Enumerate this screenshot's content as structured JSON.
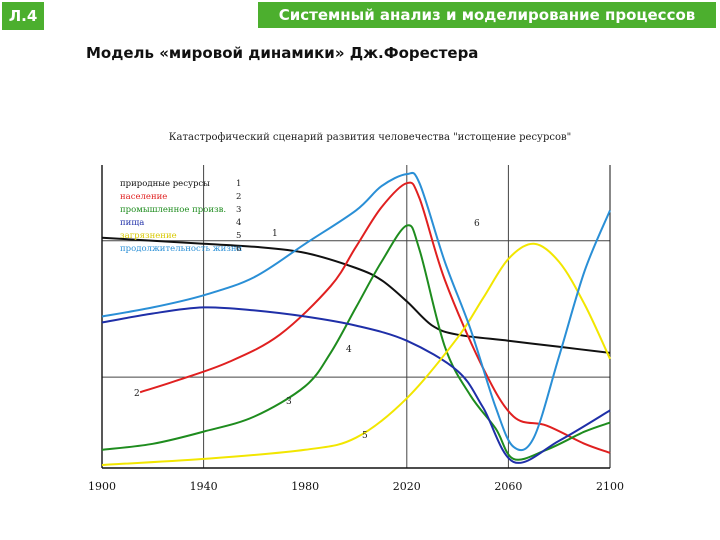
{
  "header": {
    "lecture_badge": "Л.4",
    "course_title": "Системный анализ и моделирование процессов",
    "slide_subtitle": "Модель «мировой динамики» Дж.Форестера"
  },
  "chart_data": {
    "type": "line",
    "title": "Катастрофический сценарий развития человечества \"истощение ресурсов\"",
    "xlabel": "",
    "ylabel": "",
    "xlim": [
      1900,
      2100
    ],
    "ylim": [
      0,
      100
    ],
    "x_ticks": [
      "1900",
      "1940",
      "1980",
      "2020",
      "2060",
      "2100"
    ],
    "grid": true,
    "legend_position": "top-left",
    "series": [
      {
        "name": "природные ресурсы",
        "number": "1",
        "color": "#111111",
        "x": [
          1900,
          1920,
          1940,
          1960,
          1980,
          2000,
          2010,
          2020,
          2030,
          2040,
          2060,
          2080,
          2100
        ],
        "y": [
          76,
          75,
          74,
          73,
          71,
          66,
          62,
          55,
          47,
          44,
          42,
          40,
          38
        ]
      },
      {
        "name": "население",
        "number": "2",
        "color": "#e02020",
        "x": [
          1915,
          1930,
          1950,
          1970,
          1990,
          2000,
          2010,
          2020,
          2025,
          2035,
          2050,
          2062,
          2075,
          2090,
          2100
        ],
        "y": [
          25,
          29,
          35,
          44,
          60,
          73,
          86,
          94,
          89,
          62,
          33,
          17,
          14,
          8,
          5
        ]
      },
      {
        "name": "промышленное произв.",
        "number": "3",
        "color": "#1e8c1e",
        "x": [
          1900,
          1920,
          1940,
          1960,
          1980,
          1990,
          2000,
          2010,
          2020,
          2025,
          2035,
          2045,
          2055,
          2062,
          2075,
          2090,
          2100
        ],
        "y": [
          6,
          8,
          12,
          17,
          27,
          38,
          53,
          68,
          80,
          72,
          40,
          24,
          13,
          3,
          6,
          12,
          15
        ]
      },
      {
        "name": "пища",
        "number": "4",
        "color": "#1f2fa8",
        "x": [
          1900,
          1920,
          1940,
          1960,
          1980,
          2000,
          2020,
          2040,
          2050,
          2062,
          2080,
          2100
        ],
        "y": [
          48,
          51,
          53,
          52,
          50,
          47,
          42,
          32,
          20,
          2,
          9,
          19
        ]
      },
      {
        "name": "загрязнение",
        "number": "5",
        "color": "#f2e600",
        "x": [
          1900,
          1940,
          1980,
          2000,
          2020,
          2040,
          2050,
          2060,
          2070,
          2080,
          2090,
          2100
        ],
        "y": [
          1,
          3,
          6,
          10,
          23,
          43,
          56,
          69,
          74,
          68,
          54,
          36
        ]
      },
      {
        "name": "продолжительность жизни",
        "number": "6",
        "color": "#2a8fd6",
        "x": [
          1900,
          1920,
          1940,
          1960,
          1980,
          2000,
          2010,
          2020,
          2025,
          2035,
          2045,
          2055,
          2062,
          2070,
          2080,
          2090,
          2100
        ],
        "y": [
          50,
          53,
          57,
          63,
          74,
          85,
          93,
          97,
          94,
          68,
          46,
          20,
          7,
          10,
          37,
          65,
          85
        ]
      }
    ],
    "curve_labels": [
      "1",
      "2",
      "3",
      "4",
      "5",
      "6"
    ]
  }
}
